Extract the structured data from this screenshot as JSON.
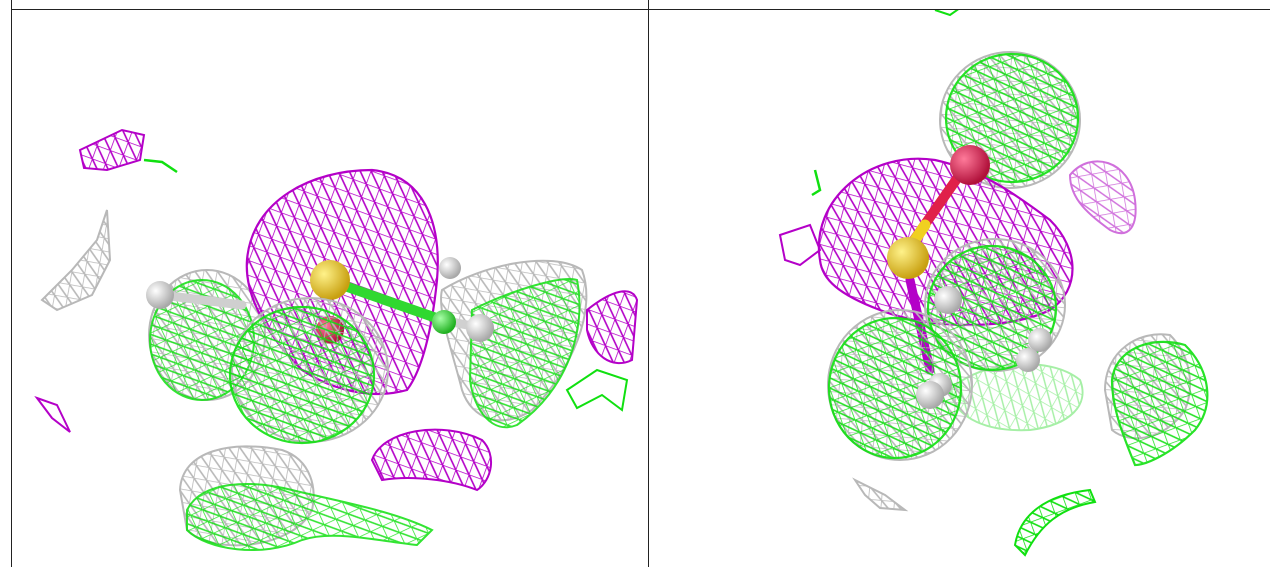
{
  "figure": {
    "panels": [
      {
        "id": "left",
        "description_visible_text": ""
      },
      {
        "id": "right",
        "description_visible_text": ""
      }
    ],
    "colors": {
      "mesh_purple": "#b400c8",
      "mesh_green": "#10e010",
      "mesh_gray": "#b8b8b8",
      "atom_white": "#e8e8e8",
      "atom_red": "#e0204a",
      "atom_yellow": "#f0d020",
      "atom_green": "#30d830"
    }
  }
}
